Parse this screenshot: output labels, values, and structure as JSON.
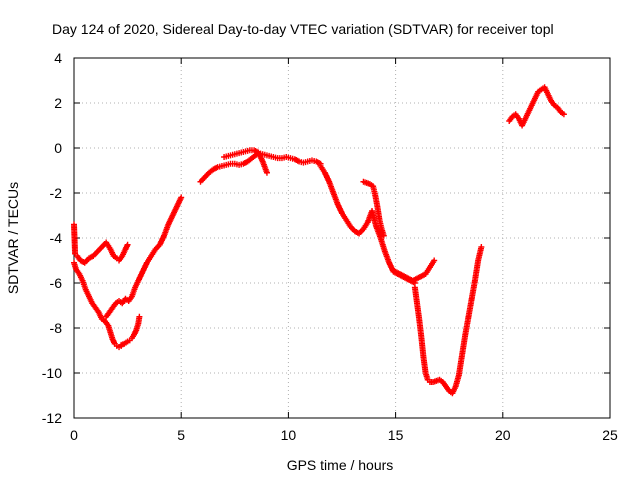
{
  "chart_data": {
    "type": "scatter",
    "title": "Day 124 of 2020, Sidereal Day-to-day VTEC variation (SDTVAR) for receiver topl",
    "xlabel": "GPS time / hours",
    "ylabel": "SDTVAR / TECUs",
    "xlim": [
      0,
      25
    ],
    "ylim": [
      -12,
      4
    ],
    "xticks": [
      "0",
      "5",
      "10",
      "15",
      "20",
      "25"
    ],
    "yticks": [
      "-12",
      "-10",
      "-8",
      "-6",
      "-4",
      "-2",
      "0",
      "2",
      "4"
    ],
    "grid": true,
    "marker": "+",
    "color": "#ff0000",
    "series": [
      {
        "x": [
          0.0,
          0.05,
          0.15,
          0.3,
          0.5,
          0.7,
          0.9,
          1.1,
          1.3,
          1.5,
          1.7,
          1.85,
          2.0,
          2.1,
          2.25,
          2.4,
          2.5
        ],
        "y": [
          -3.4,
          -4.7,
          -4.8,
          -5.0,
          -5.1,
          -4.9,
          -4.8,
          -4.6,
          -4.4,
          -4.2,
          -4.5,
          -4.8,
          -4.9,
          -5.0,
          -4.8,
          -4.5,
          -4.3
        ]
      },
      {
        "x": [
          0.0,
          0.1,
          0.25,
          0.4,
          0.55,
          0.7,
          0.85,
          1.0,
          1.15,
          1.3,
          1.45,
          1.6,
          1.7,
          1.8,
          1.9,
          2.0,
          2.1,
          2.2
        ],
        "y": [
          -5.1,
          -5.4,
          -5.6,
          -5.9,
          -6.3,
          -6.6,
          -6.9,
          -7.1,
          -7.3,
          -7.6,
          -7.7,
          -7.9,
          -8.2,
          -8.5,
          -8.7,
          -8.8,
          -8.85,
          -8.8
        ]
      },
      {
        "x": [
          2.2,
          2.35,
          2.5,
          2.6,
          2.7,
          2.8,
          2.9,
          3.0,
          3.05
        ],
        "y": [
          -8.75,
          -8.7,
          -8.6,
          -8.55,
          -8.45,
          -8.3,
          -8.1,
          -7.8,
          -7.5
        ]
      },
      {
        "x": [
          1.5,
          1.65,
          1.8,
          1.95,
          2.1,
          2.25,
          2.4,
          2.55,
          2.7,
          2.85,
          3.0,
          3.2,
          3.4,
          3.6,
          3.8,
          4.0,
          4.2,
          4.4,
          4.6,
          4.8,
          5.0
        ],
        "y": [
          -7.5,
          -7.3,
          -7.1,
          -6.9,
          -6.8,
          -6.9,
          -6.7,
          -6.8,
          -6.6,
          -6.2,
          -5.9,
          -5.5,
          -5.1,
          -4.8,
          -4.5,
          -4.3,
          -3.9,
          -3.4,
          -3.0,
          -2.6,
          -2.2
        ]
      },
      {
        "x": [
          5.9,
          6.1,
          6.3,
          6.5,
          6.7,
          6.9,
          7.1,
          7.3,
          7.5,
          7.7,
          7.9,
          8.1,
          8.3,
          8.5,
          8.7,
          8.9,
          9.1,
          9.3,
          9.5,
          9.7,
          9.9,
          10.1,
          10.3,
          10.5,
          10.7,
          10.9,
          11.1,
          11.3,
          11.5
        ],
        "y": [
          -1.5,
          -1.3,
          -1.1,
          -0.95,
          -0.85,
          -0.8,
          -0.75,
          -0.7,
          -0.7,
          -0.75,
          -0.7,
          -0.6,
          -0.45,
          -0.3,
          -0.25,
          -0.3,
          -0.35,
          -0.4,
          -0.45,
          -0.45,
          -0.4,
          -0.45,
          -0.5,
          -0.6,
          -0.65,
          -0.6,
          -0.55,
          -0.6,
          -0.7
        ]
      },
      {
        "x": [
          7.0,
          7.2,
          7.4,
          7.6,
          7.8,
          8.0,
          8.2,
          8.4,
          8.6,
          8.8,
          9.0
        ],
        "y": [
          -0.4,
          -0.35,
          -0.3,
          -0.25,
          -0.2,
          -0.15,
          -0.1,
          -0.1,
          -0.2,
          -0.6,
          -1.1
        ]
      },
      {
        "x": [
          11.5,
          11.7,
          11.9,
          12.1,
          12.3,
          12.5,
          12.7,
          12.9,
          13.1,
          13.3,
          13.5,
          13.7,
          13.9,
          14.1,
          14.3,
          14.5,
          14.7,
          14.9,
          15.1,
          15.3,
          15.5,
          15.7,
          15.9
        ],
        "y": [
          -0.8,
          -1.1,
          -1.5,
          -2.0,
          -2.5,
          -2.9,
          -3.2,
          -3.5,
          -3.7,
          -3.8,
          -3.6,
          -3.3,
          -2.8,
          -3.5,
          -4.0,
          -4.6,
          -5.1,
          -5.5,
          -5.6,
          -5.7,
          -5.8,
          -5.9,
          -6.0
        ]
      },
      {
        "x": [
          13.5,
          13.65,
          13.8,
          13.95,
          14.05,
          14.15,
          14.25,
          14.35,
          14.45
        ],
        "y": [
          -1.5,
          -1.55,
          -1.6,
          -1.7,
          -2.1,
          -2.6,
          -3.2,
          -3.6,
          -3.9
        ]
      },
      {
        "x": [
          15.0,
          15.2,
          15.4,
          15.6,
          15.8,
          16.0,
          16.2,
          16.4,
          16.6,
          16.8
        ],
        "y": [
          -5.5,
          -5.6,
          -5.7,
          -5.8,
          -5.9,
          -5.8,
          -5.7,
          -5.6,
          -5.3,
          -5.0
        ]
      },
      {
        "x": [
          15.9,
          16.0,
          16.1,
          16.2,
          16.3,
          16.4,
          16.5,
          16.6,
          16.75,
          16.9,
          17.05,
          17.2,
          17.35,
          17.5,
          17.65,
          17.8,
          17.95,
          18.1,
          18.25,
          18.4,
          18.55,
          18.7,
          18.85,
          19.0
        ],
        "y": [
          -6.2,
          -6.9,
          -7.6,
          -8.4,
          -9.3,
          -10.0,
          -10.3,
          -10.4,
          -10.4,
          -10.35,
          -10.3,
          -10.4,
          -10.6,
          -10.8,
          -10.9,
          -10.6,
          -10.1,
          -9.2,
          -8.3,
          -7.5,
          -6.7,
          -5.9,
          -5.0,
          -4.4
        ]
      },
      {
        "x": [
          20.3,
          20.45,
          20.6,
          20.75,
          20.9,
          21.05,
          21.2,
          21.35,
          21.5,
          21.65,
          21.8,
          21.95,
          22.1,
          22.25,
          22.4,
          22.55,
          22.7,
          22.85
        ],
        "y": [
          1.2,
          1.4,
          1.5,
          1.3,
          1.0,
          1.3,
          1.6,
          1.9,
          2.2,
          2.5,
          2.6,
          2.7,
          2.4,
          2.1,
          1.9,
          1.8,
          1.6,
          1.5
        ]
      }
    ]
  }
}
